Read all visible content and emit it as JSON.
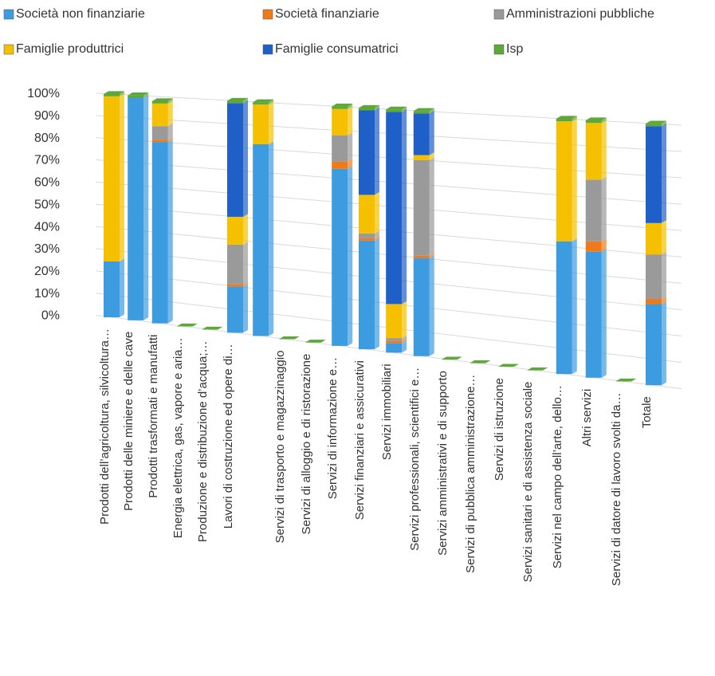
{
  "chart_data": {
    "type": "bar3d",
    "stacked": true,
    "categories": [
      "Prodotti dell’agricoltura, silvicoltura…",
      "Prodotti delle miniere e delle cave",
      "Prodotti trasformati e manufatti",
      "Energia elettrica, gas, vapore e aria…",
      "Produzione e distribuzione d’acqua;…",
      "Lavori di costruzione ed opere di…",
      null,
      "Servizi di trasporto e magazzinaggio",
      "Servizi di alloggio e di ristorazione",
      "Servizi di informazione e…",
      "Servizi finanziari e assicurativi",
      "Servizi immobiliari",
      "Servizi professionali, scientifici e…",
      "Servizi amministrativi e di supporto",
      "Servizi di pubblica amministrazione…",
      "Servizi di istruzione",
      "Servizi sanitari e di assistenza sociale",
      "Servizi nel campo dell’arte, dello…",
      "Altri servizi",
      "Servizi di datore di lavoro svolti da…",
      "Totale"
    ],
    "series": [
      {
        "name": "Società non finanziarie",
        "color": "#3d9be0",
        "values": [
          25,
          99,
          80,
          0,
          0,
          20,
          82,
          0,
          0,
          74,
          45,
          4,
          40,
          0,
          0,
          0,
          0,
          52,
          49,
          0,
          31
        ]
      },
      {
        "name": "Società finanziarie",
        "color": "#f07a1a",
        "values": [
          0,
          0,
          1,
          0,
          0,
          1,
          0,
          0,
          0,
          3,
          1,
          1,
          1,
          0,
          0,
          0,
          0,
          0,
          4,
          0,
          2
        ]
      },
      {
        "name": "Amministrazioni pubbliche",
        "color": "#9a9a9a",
        "values": [
          0,
          0,
          6,
          0,
          0,
          17,
          0,
          0,
          0,
          11,
          2,
          1,
          39,
          0,
          0,
          0,
          0,
          0,
          24,
          0,
          17
        ]
      },
      {
        "name": "Famiglie produttrici",
        "color": "#f5c000",
        "values": [
          74,
          0,
          10,
          0,
          0,
          12,
          17,
          0,
          0,
          11,
          16,
          14,
          2,
          0,
          0,
          0,
          0,
          47,
          22,
          0,
          12
        ]
      },
      {
        "name": "Famiglie consumatrici",
        "color": "#1f5fc8",
        "values": [
          0,
          0,
          0,
          0,
          0,
          49,
          0,
          0,
          0,
          0,
          35,
          79,
          17,
          0,
          0,
          0,
          0,
          0,
          0,
          0,
          37
        ]
      },
      {
        "name": "Isp",
        "color": "#5ea83a",
        "values": [
          1,
          1,
          1,
          0,
          0,
          1,
          1,
          0,
          0,
          1,
          1,
          1,
          1,
          0,
          0,
          0,
          0,
          1,
          1,
          0,
          1
        ]
      }
    ],
    "ylim": [
      0,
      100
    ],
    "yticks": [
      {
        "value": 0,
        "label": "0%"
      },
      {
        "value": 10,
        "label": "10%"
      },
      {
        "value": 20,
        "label": "20%"
      },
      {
        "value": 30,
        "label": "30%"
      },
      {
        "value": 40,
        "label": "40%"
      },
      {
        "value": 50,
        "label": "50%"
      },
      {
        "value": 60,
        "label": "60%"
      },
      {
        "value": 70,
        "label": "70%"
      },
      {
        "value": 80,
        "label": "80%"
      },
      {
        "value": 90,
        "label": "90%"
      },
      {
        "value": 100,
        "label": "100%"
      }
    ],
    "grid": true
  }
}
